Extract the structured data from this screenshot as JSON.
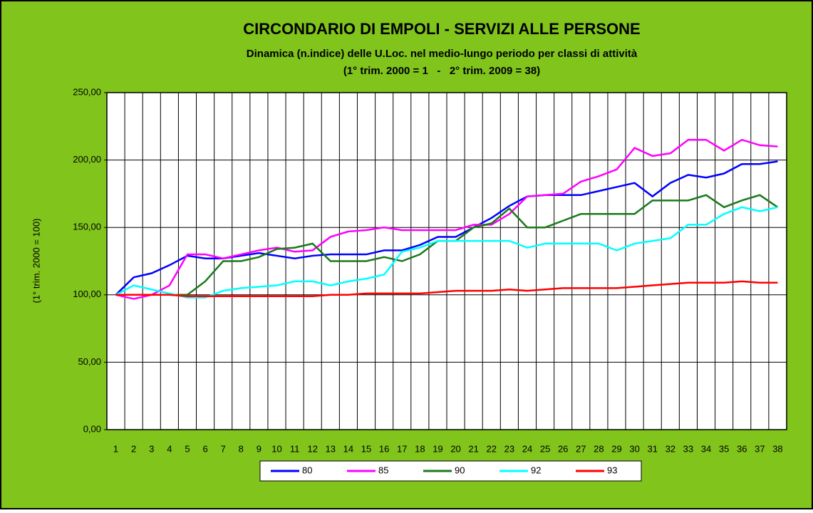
{
  "chart_data": {
    "type": "line",
    "title": "CIRCONDARIO DI EMPOLI - SERVIZI ALLE PERSONE",
    "subtitle": "Dinamica (n.indice) delle U.Loc. nel medio-lungo periodo per classi di attività",
    "subtitle2": "(1° trim. 2000 = 1   -   2° trim. 2009 = 38)",
    "y_label": "(1° trim. 2000 = 100)",
    "categories": [
      "1",
      "2",
      "3",
      "4",
      "5",
      "6",
      "7",
      "8",
      "9",
      "10",
      "11",
      "12",
      "13",
      "14",
      "15",
      "16",
      "17",
      "18",
      "19",
      "20",
      "21",
      "22",
      "23",
      "24",
      "25",
      "26",
      "27",
      "28",
      "29",
      "30",
      "31",
      "32",
      "33",
      "34",
      "35",
      "36",
      "37",
      "38"
    ],
    "ylim": [
      0,
      250
    ],
    "yticks": [
      {
        "value": 0,
        "label": "0,00"
      },
      {
        "value": 50,
        "label": "50,00"
      },
      {
        "value": 100,
        "label": "100,00"
      },
      {
        "value": 150,
        "label": "150,00"
      },
      {
        "value": 200,
        "label": "200,00"
      },
      {
        "value": 250,
        "label": "250,00"
      }
    ],
    "grid": true,
    "legend": "bottom",
    "series": [
      {
        "name": "80",
        "color": "#0000ff",
        "values": [
          100,
          113,
          116,
          122,
          129,
          127,
          127,
          129,
          131,
          129,
          127,
          129,
          130,
          130,
          130,
          133,
          133,
          137,
          143,
          143,
          150,
          157,
          166,
          173,
          174,
          174,
          174,
          177,
          180,
          183,
          173,
          183,
          189,
          187,
          190,
          197,
          197,
          199
        ]
      },
      {
        "name": "85",
        "color": "#ff00ff",
        "values": [
          100,
          97,
          100,
          107,
          130,
          130,
          127,
          130,
          133,
          135,
          132,
          133,
          143,
          147,
          148,
          150,
          148,
          148,
          148,
          148,
          152,
          152,
          160,
          173,
          174,
          175,
          184,
          188,
          193,
          209,
          203,
          205,
          215,
          215,
          207,
          215,
          211,
          210
        ]
      },
      {
        "name": "90",
        "color": "#1a7a1a",
        "values": [
          100,
          100,
          100,
          100,
          100,
          110,
          125,
          125,
          128,
          134,
          135,
          138,
          125,
          125,
          125,
          128,
          125,
          130,
          140,
          140,
          150,
          153,
          164,
          150,
          150,
          155,
          160,
          160,
          160,
          160,
          170,
          170,
          170,
          174,
          165,
          170,
          174,
          165
        ]
      },
      {
        "name": "92",
        "color": "#00ffff",
        "values": [
          100,
          107,
          104,
          101,
          98,
          98,
          103,
          105,
          106,
          107,
          110,
          110,
          107,
          110,
          112,
          115,
          132,
          135,
          140,
          140,
          140,
          140,
          140,
          135,
          138,
          138,
          138,
          138,
          133,
          138,
          140,
          142,
          152,
          152,
          160,
          165,
          162,
          165
        ]
      },
      {
        "name": "93",
        "color": "#ff0000",
        "values": [
          100,
          100,
          100,
          100,
          99,
          99,
          99,
          99,
          99,
          99,
          99,
          99,
          100,
          100,
          101,
          101,
          101,
          101,
          102,
          103,
          103,
          103,
          104,
          103,
          104,
          105,
          105,
          105,
          105,
          106,
          107,
          108,
          109,
          109,
          109,
          110,
          109,
          109
        ]
      }
    ]
  }
}
